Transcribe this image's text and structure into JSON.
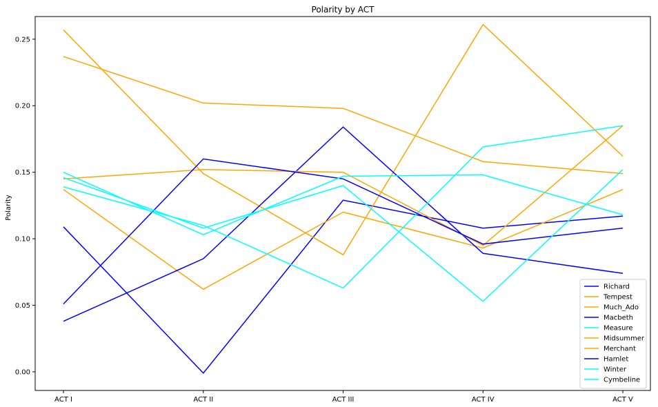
{
  "chart_data": {
    "type": "line",
    "title": "Polarity by ACT",
    "xlabel": "",
    "ylabel": "Polarity",
    "categories": [
      "ACT I",
      "ACT II",
      "ACT III",
      "ACT IV",
      "ACT V"
    ],
    "ylim": [
      -0.014,
      0.267
    ],
    "yticks": [
      0.0,
      0.05,
      0.1,
      0.15,
      0.2,
      0.25
    ],
    "ytick_labels": [
      "0.00",
      "0.05",
      "0.10",
      "0.15",
      "0.20",
      "0.25"
    ],
    "grid": false,
    "legend_position": "lower-right",
    "series": [
      {
        "name": "Richard",
        "color": "#0000ff",
        "values": [
          0.109,
          -0.001,
          0.129,
          0.108,
          0.117
        ]
      },
      {
        "name": "Tempest",
        "color": "#ffa500",
        "values": [
          0.257,
          0.149,
          0.088,
          0.261,
          0.162
        ]
      },
      {
        "name": "Much_Ado",
        "color": "#ffa500",
        "values": [
          0.137,
          0.062,
          0.12,
          0.093,
          0.137
        ]
      },
      {
        "name": "Macbeth",
        "color": "#0000ff",
        "values": [
          0.038,
          0.085,
          0.184,
          0.089,
          0.074
        ]
      },
      {
        "name": "Measure",
        "color": "#00ffff",
        "values": [
          0.139,
          0.11,
          0.063,
          0.169,
          0.185
        ]
      },
      {
        "name": "Midsummer",
        "color": "#ffa500",
        "values": [
          0.237,
          0.202,
          0.198,
          0.158,
          0.149
        ]
      },
      {
        "name": "Merchant",
        "color": "#ffa500",
        "values": [
          0.145,
          0.152,
          0.15,
          0.095,
          0.185
        ]
      },
      {
        "name": "Hamlet",
        "color": "#0000ff",
        "values": [
          0.051,
          0.16,
          0.145,
          0.096,
          0.108
        ]
      },
      {
        "name": "Winter",
        "color": "#00ffff",
        "values": [
          0.15,
          0.103,
          0.147,
          0.148,
          0.118
        ]
      },
      {
        "name": "Cymbeline",
        "color": "#00ffff",
        "values": [
          0.146,
          0.108,
          0.14,
          0.053,
          0.152
        ]
      }
    ]
  }
}
